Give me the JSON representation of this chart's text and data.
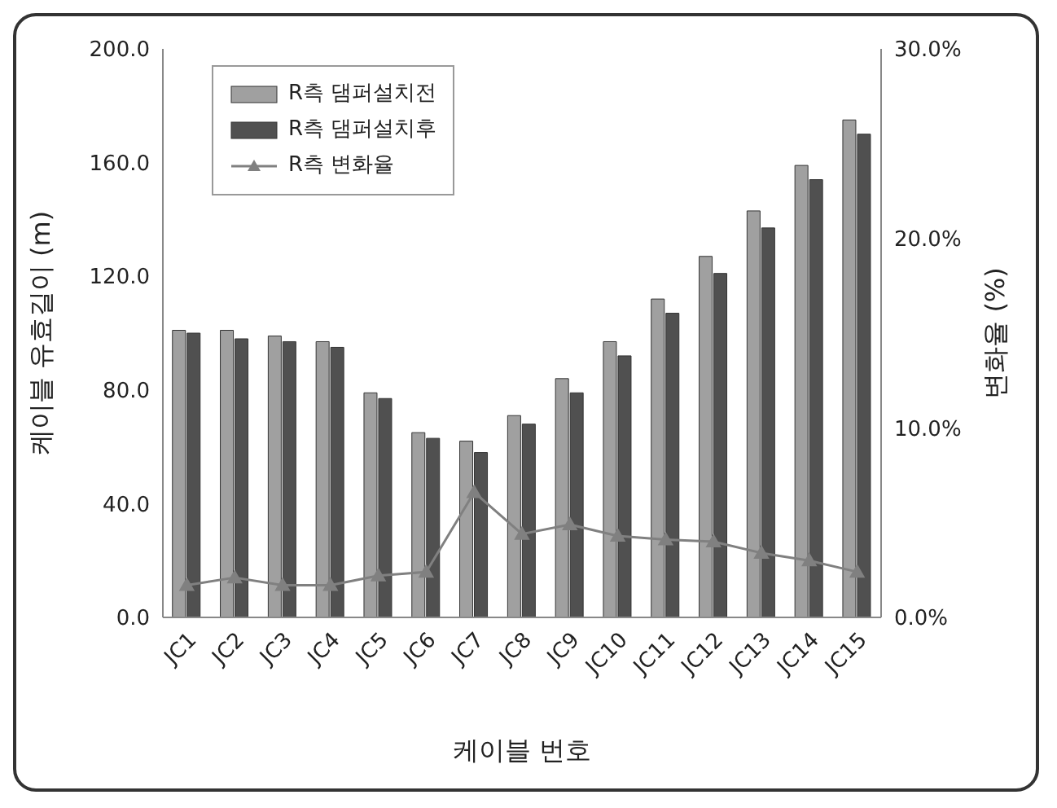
{
  "chart_data": {
    "type": "bar",
    "xlabel": "케이블 번호",
    "ylabel": "케이블 유효길이 (m)",
    "y2label": "변화율 (%)",
    "categories": [
      "JC1",
      "JC2",
      "JC3",
      "JC4",
      "JC5",
      "JC6",
      "JC7",
      "JC8",
      "JC9",
      "JC10",
      "JC11",
      "JC12",
      "JC13",
      "JC14",
      "JC15"
    ],
    "series": [
      {
        "name": "R측 댐퍼설치전",
        "color": "#a0a0a0",
        "values": [
          101,
          101,
          99,
          97,
          79,
          65,
          62,
          71,
          84,
          97,
          112,
          127,
          143,
          159,
          175
        ]
      },
      {
        "name": "R측 댐퍼설치후",
        "color": "#505050",
        "values": [
          100,
          98,
          97,
          95,
          77,
          63,
          58,
          68,
          79,
          92,
          107,
          121,
          137,
          154,
          170
        ]
      },
      {
        "name": "R측 변화율",
        "type": "line",
        "axis": "y2",
        "color": "#808080",
        "marker": "triangle",
        "values": [
          1.7,
          2.1,
          1.7,
          1.7,
          2.2,
          2.4,
          6.6,
          4.4,
          4.9,
          4.3,
          4.1,
          4.0,
          3.4,
          3.0,
          2.4
        ]
      }
    ],
    "ylim": [
      0,
      200
    ],
    "yticks": [
      {
        "value": 0,
        "label": "0.0"
      },
      {
        "value": 40,
        "label": "40.0"
      },
      {
        "value": 80,
        "label": "80.0"
      },
      {
        "value": 120,
        "label": "120.0"
      },
      {
        "value": 160,
        "label": "160.0"
      },
      {
        "value": 200,
        "label": "200.0"
      }
    ],
    "y2lim": [
      0,
      30
    ],
    "y2ticks": [
      {
        "value": 0,
        "label": "0.0%"
      },
      {
        "value": 10,
        "label": "10.0%"
      },
      {
        "value": 20,
        "label": "20.0%"
      },
      {
        "value": 30,
        "label": "30.0%"
      }
    ],
    "legend": "top left"
  }
}
